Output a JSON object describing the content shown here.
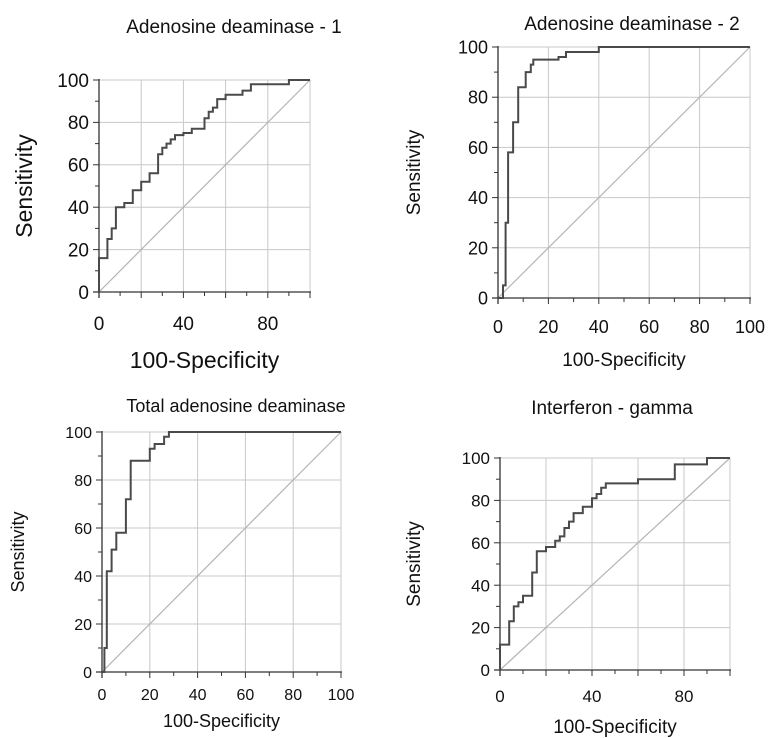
{
  "chart_data": [
    {
      "type": "line",
      "title": "Adenosine deaminase - 1",
      "xlabel": "100-Specificity",
      "ylabel": "Sensitivity",
      "xlim": [
        0,
        100
      ],
      "ylim": [
        0,
        100
      ],
      "xticks": [
        0,
        40,
        80
      ],
      "yticks": [
        0,
        20,
        40,
        60,
        80,
        100
      ],
      "grid": true,
      "diagonal_reference": true,
      "series": [
        {
          "x": [
            0,
            0,
            4,
            4,
            6,
            6,
            8,
            8,
            12,
            12,
            16,
            16,
            20,
            20,
            24,
            24,
            28,
            28,
            30,
            30,
            32,
            32,
            34,
            34,
            36,
            36,
            40,
            40,
            44,
            44,
            50,
            50,
            52,
            52,
            54,
            54,
            56,
            56,
            60,
            60,
            68,
            68,
            72,
            72,
            90,
            90,
            100
          ],
          "y": [
            0,
            16,
            16,
            25,
            25,
            30,
            30,
            40,
            40,
            42,
            42,
            48,
            48,
            52,
            52,
            56,
            56,
            65,
            65,
            68,
            68,
            70,
            70,
            72,
            72,
            74,
            74,
            75,
            75,
            77,
            77,
            82,
            82,
            85,
            85,
            87,
            87,
            91,
            91,
            93,
            93,
            95,
            95,
            98,
            98,
            100,
            100
          ]
        }
      ]
    },
    {
      "type": "line",
      "title": "Adenosine deaminase - 2",
      "xlabel": "100-Specificity",
      "ylabel": "Sensitivity",
      "xlim": [
        0,
        100
      ],
      "ylim": [
        0,
        100
      ],
      "xticks": [
        0,
        20,
        40,
        60,
        80,
        100
      ],
      "yticks": [
        0,
        20,
        40,
        60,
        80,
        100
      ],
      "grid": true,
      "diagonal_reference": true,
      "series": [
        {
          "x": [
            0,
            2,
            2,
            3,
            3,
            4,
            4,
            6,
            6,
            8,
            8,
            11,
            11,
            13,
            13,
            14,
            14,
            24,
            24,
            27,
            27,
            40,
            40,
            100
          ],
          "y": [
            0,
            0,
            5,
            5,
            30,
            30,
            58,
            58,
            70,
            70,
            84,
            84,
            90,
            90,
            93,
            93,
            95,
            95,
            96,
            96,
            98,
            98,
            100,
            100
          ]
        }
      ]
    },
    {
      "type": "line",
      "title": "Total adenosine deaminase",
      "xlabel": "100-Specificity",
      "ylabel": "Sensitivity",
      "xlim": [
        0,
        100
      ],
      "ylim": [
        0,
        100
      ],
      "xticks": [
        0,
        20,
        40,
        60,
        80,
        100
      ],
      "yticks": [
        0,
        20,
        40,
        60,
        80,
        100
      ],
      "grid": true,
      "diagonal_reference": true,
      "series": [
        {
          "x": [
            0,
            1,
            1,
            2,
            2,
            4,
            4,
            6,
            6,
            10,
            10,
            12,
            12,
            20,
            20,
            22,
            22,
            26,
            26,
            28,
            28,
            100
          ],
          "y": [
            0,
            0,
            10,
            10,
            42,
            42,
            51,
            51,
            58,
            58,
            72,
            72,
            88,
            88,
            93,
            93,
            95,
            95,
            98,
            98,
            100,
            100
          ]
        }
      ]
    },
    {
      "type": "line",
      "title": "Interferon - gamma",
      "xlabel": "100-Specificity",
      "ylabel": "Sensitivity",
      "xlim": [
        0,
        100
      ],
      "ylim": [
        0,
        100
      ],
      "xticks": [
        0,
        40,
        80
      ],
      "yticks": [
        0,
        20,
        40,
        60,
        80,
        100
      ],
      "grid": true,
      "diagonal_reference": true,
      "series": [
        {
          "x": [
            0,
            0,
            4,
            4,
            6,
            6,
            8,
            8,
            10,
            10,
            14,
            14,
            16,
            16,
            18,
            18,
            20,
            20,
            24,
            24,
            26,
            26,
            28,
            28,
            30,
            30,
            32,
            32,
            36,
            36,
            40,
            40,
            42,
            42,
            44,
            44,
            46,
            46,
            50,
            50,
            60,
            60,
            76,
            76,
            80,
            80,
            90,
            90,
            100
          ],
          "y": [
            0,
            12,
            12,
            23,
            23,
            30,
            30,
            32,
            32,
            35,
            35,
            46,
            46,
            56,
            56,
            56,
            56,
            58,
            58,
            61,
            61,
            63,
            63,
            67,
            67,
            70,
            70,
            74,
            74,
            77,
            77,
            81,
            81,
            83,
            83,
            86,
            86,
            88,
            88,
            88,
            88,
            90,
            90,
            97,
            97,
            97,
            97,
            100,
            100
          ]
        }
      ]
    }
  ]
}
